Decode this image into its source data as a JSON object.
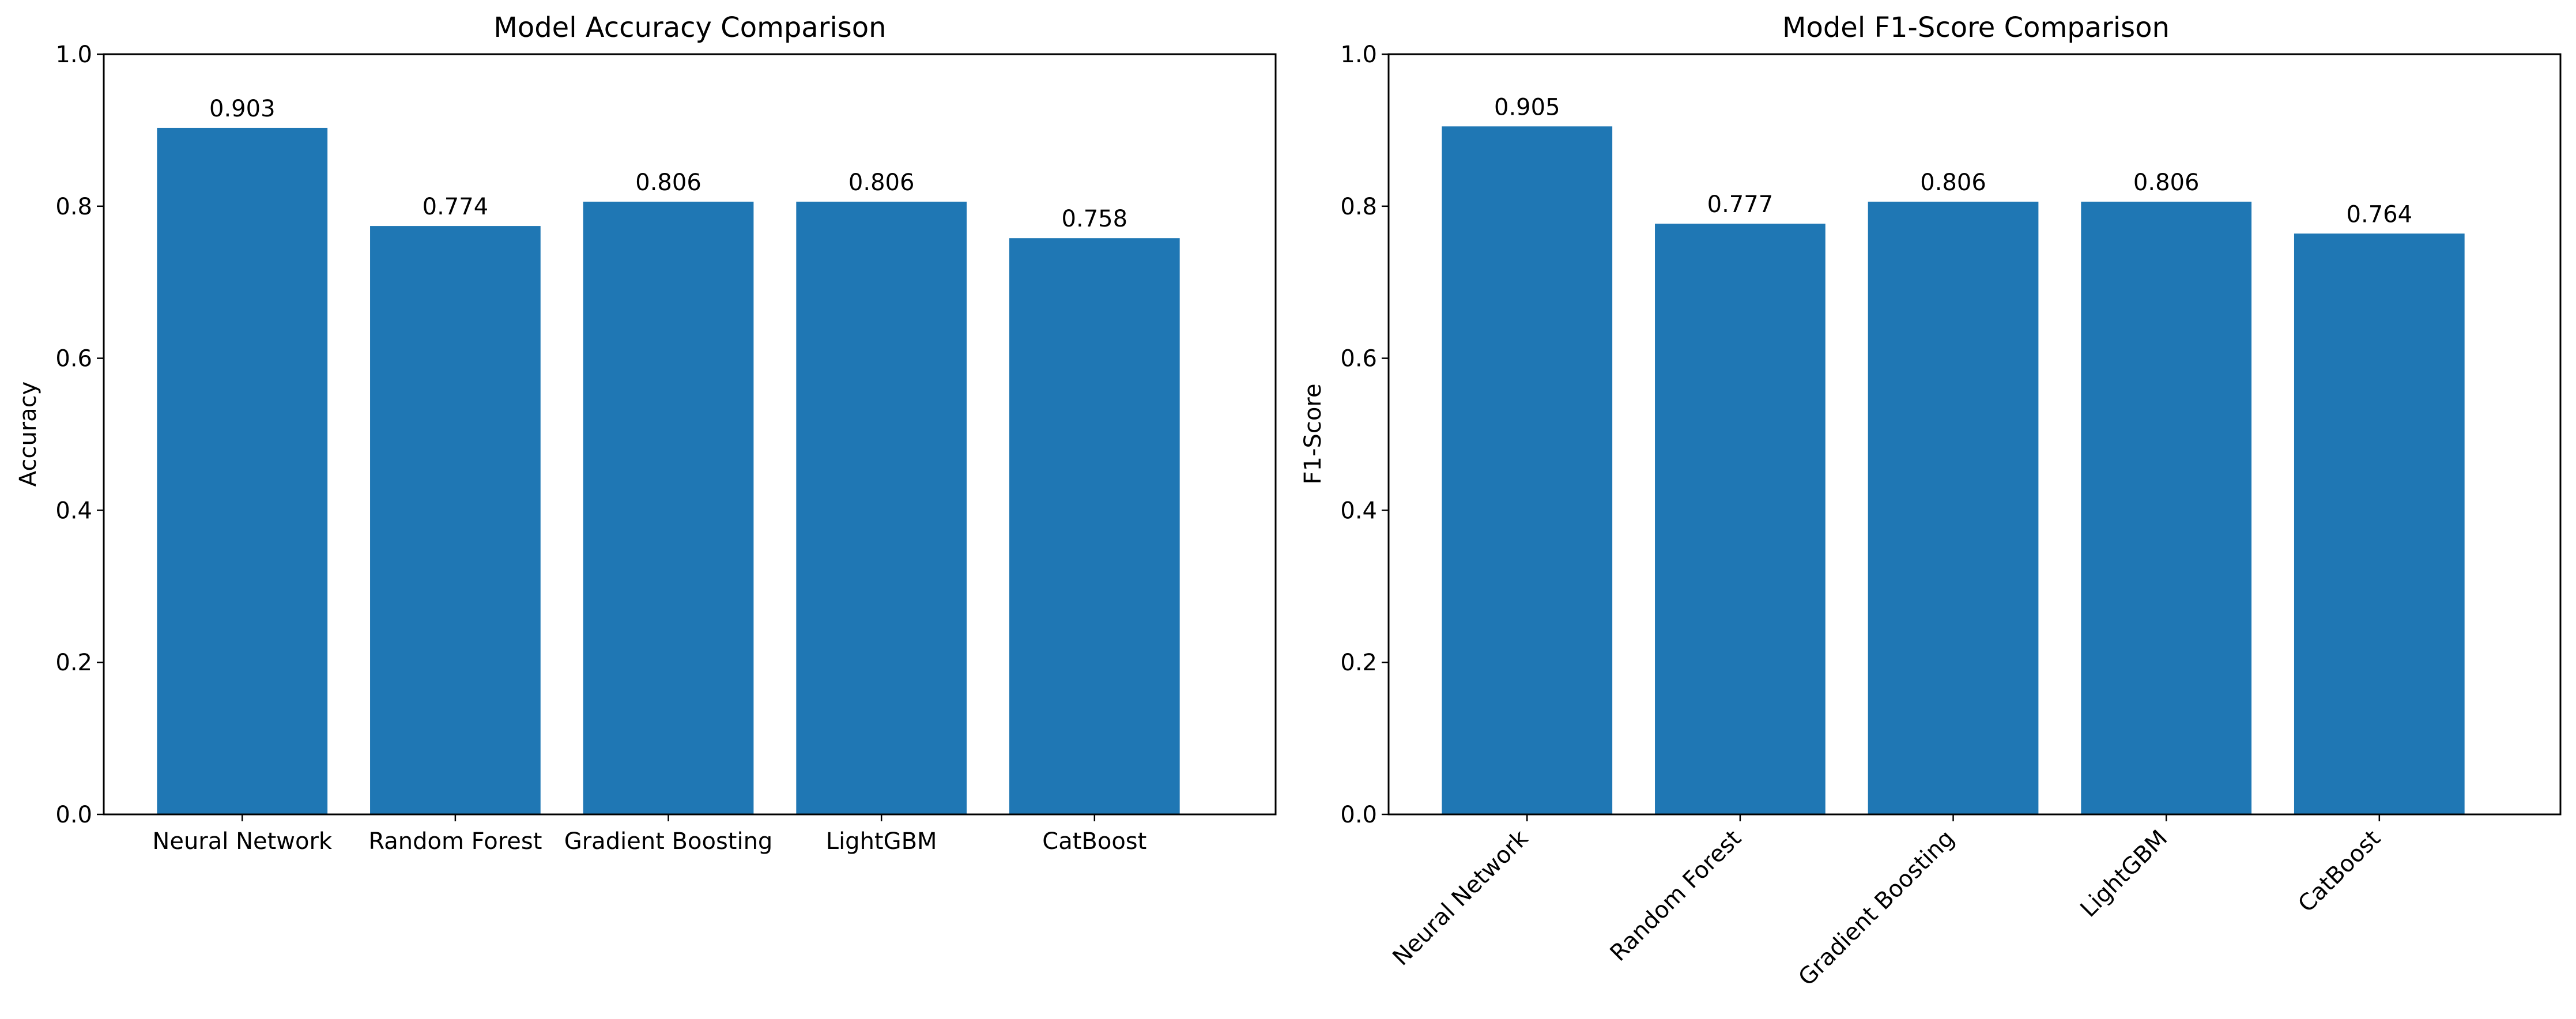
{
  "chart_data": [
    {
      "type": "bar",
      "title": "Model Accuracy Comparison",
      "xlabel": "",
      "ylabel": "Accuracy",
      "ylim": [
        0,
        1.0
      ],
      "yticks": [
        "0.0",
        "0.2",
        "0.4",
        "0.6",
        "0.8",
        "1.0"
      ],
      "categories": [
        "Neural Network",
        "Random Forest",
        "Gradient Boosting",
        "LightGBM",
        "CatBoost"
      ],
      "values": [
        0.903,
        0.774,
        0.806,
        0.806,
        0.758
      ],
      "value_labels": [
        "0.903",
        "0.774",
        "0.806",
        "0.806",
        "0.758"
      ],
      "bar_color": "#1f77b4",
      "grid": false,
      "xtick_rotation": 0
    },
    {
      "type": "bar",
      "title": "Model F1-Score Comparison",
      "xlabel": "",
      "ylabel": "F1-Score",
      "ylim": [
        0,
        1.0
      ],
      "yticks": [
        "0.0",
        "0.2",
        "0.4",
        "0.6",
        "0.8",
        "1.0"
      ],
      "categories": [
        "Neural Network",
        "Random Forest",
        "Gradient Boosting",
        "LightGBM",
        "CatBoost"
      ],
      "values": [
        0.905,
        0.777,
        0.806,
        0.806,
        0.764
      ],
      "value_labels": [
        "0.905",
        "0.777",
        "0.806",
        "0.806",
        "0.764"
      ],
      "bar_color": "#1f77b4",
      "grid": false,
      "xtick_rotation": 45
    }
  ]
}
